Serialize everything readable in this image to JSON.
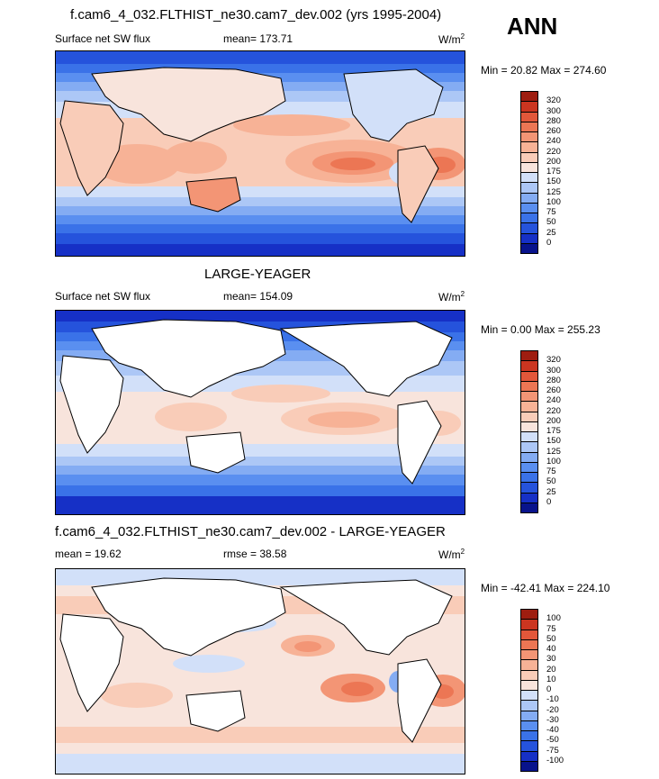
{
  "season": "ANN",
  "panels": [
    {
      "title": "f.cam6_4_032.FLTHIST_ne30.cam7_dev.002 (yrs 1995-2004)",
      "left_label": "Surface net SW flux",
      "center_label": "mean= 173.71",
      "units": "W/m",
      "units_sup": "2",
      "minmax": "Min =  20.82 Max = 274.60",
      "levels": [
        "0",
        "25",
        "50",
        "75",
        "100",
        "125",
        "150",
        "175",
        "200",
        "220",
        "240",
        "260",
        "280",
        "300",
        "320"
      ],
      "colors": [
        "#08138c",
        "#1630c6",
        "#2553dc",
        "#3a72e8",
        "#5a8ff0",
        "#84acf3",
        "#acc7f6",
        "#d2e0f9",
        "#f8e4dc",
        "#f9ccb8",
        "#f7b296",
        "#f39575",
        "#ec7654",
        "#e2573a",
        "#cb3520",
        "#9e1d10"
      ]
    },
    {
      "title": "LARGE-YEAGER",
      "left_label": "Surface net SW flux",
      "center_label": "mean= 154.09",
      "units": "W/m",
      "units_sup": "2",
      "minmax": "Min =   0.00 Max = 255.23",
      "levels": [
        "0",
        "25",
        "50",
        "75",
        "100",
        "125",
        "150",
        "175",
        "200",
        "220",
        "240",
        "260",
        "280",
        "300",
        "320"
      ],
      "colors": [
        "#08138c",
        "#1630c6",
        "#2553dc",
        "#3a72e8",
        "#5a8ff0",
        "#84acf3",
        "#acc7f6",
        "#d2e0f9",
        "#f8e4dc",
        "#f9ccb8",
        "#f7b296",
        "#f39575",
        "#ec7654",
        "#e2573a",
        "#cb3520",
        "#9e1d10"
      ]
    },
    {
      "title": "f.cam6_4_032.FLTHIST_ne30.cam7_dev.002 - LARGE-YEAGER",
      "left_label": "mean =  19.62",
      "center_label": "rmse =  38.58",
      "units": "W/m",
      "units_sup": "2",
      "minmax": "Min = -42.41 Max = 224.10",
      "levels": [
        "-100",
        "-75",
        "-50",
        "-40",
        "-30",
        "-20",
        "-10",
        "0",
        "10",
        "20",
        "30",
        "40",
        "50",
        "75",
        "100"
      ],
      "colors": [
        "#08138c",
        "#1630c6",
        "#2553dc",
        "#3a72e8",
        "#5a8ff0",
        "#84acf3",
        "#acc7f6",
        "#d2e0f9",
        "#f8e4dc",
        "#f9ccb8",
        "#f7b296",
        "#f39575",
        "#ec7654",
        "#e2573a",
        "#cb3520",
        "#9e1d10"
      ]
    }
  ],
  "chart_data": [
    {
      "type": "heatmap",
      "title": "f.cam6_4_032.FLTHIST_ne30.cam7_dev.002 (yrs 1995-2004)",
      "variable": "Surface net SW flux",
      "units": "W/m2",
      "mean": 173.71,
      "min": 20.82,
      "max": 274.6
    },
    {
      "type": "heatmap",
      "title": "LARGE-YEAGER",
      "variable": "Surface net SW flux",
      "units": "W/m2",
      "mean": 154.09,
      "min": 0.0,
      "max": 255.23
    },
    {
      "type": "heatmap",
      "title": "f.cam6_4_032.FLTHIST_ne30.cam7_dev.002 - LARGE-YEAGER",
      "units": "W/m2",
      "mean": 19.62,
      "rmse": 38.58,
      "min": -42.41,
      "max": 224.1
    }
  ]
}
